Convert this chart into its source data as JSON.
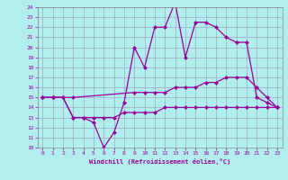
{
  "xlabel": "Windchill (Refroidissement éolien,°C)",
  "background_color": "#b2eeee",
  "grid_color": "#9999bb",
  "line_color": "#990099",
  "xlim": [
    -0.5,
    23.5
  ],
  "ylim": [
    10,
    24
  ],
  "xticks": [
    0,
    1,
    2,
    3,
    4,
    5,
    6,
    7,
    8,
    9,
    10,
    11,
    12,
    13,
    14,
    15,
    16,
    17,
    18,
    19,
    20,
    21,
    22,
    23
  ],
  "yticks": [
    10,
    11,
    12,
    13,
    14,
    15,
    16,
    17,
    18,
    19,
    20,
    21,
    22,
    23,
    24
  ],
  "line1_x": [
    0,
    1,
    2,
    3,
    4,
    5,
    6,
    7,
    8,
    9,
    10,
    11,
    12,
    13,
    14,
    15,
    16,
    17,
    18,
    19,
    20,
    21,
    22,
    23
  ],
  "line1_y": [
    15,
    15,
    15,
    13,
    13,
    12.5,
    10,
    11.5,
    14.5,
    20,
    18,
    22,
    22,
    24.5,
    19,
    22.5,
    22.5,
    22,
    21,
    20.5,
    20.5,
    15,
    14.5,
    14
  ],
  "line2_x": [
    0,
    1,
    3,
    9,
    10,
    11,
    12,
    13,
    14,
    15,
    16,
    17,
    18,
    19,
    20,
    21,
    22,
    23
  ],
  "line2_y": [
    15,
    15,
    15,
    15.5,
    15.5,
    15.5,
    15.5,
    16,
    16,
    16,
    16.5,
    16.5,
    17,
    17,
    17,
    16,
    15,
    14
  ],
  "line3_x": [
    0,
    1,
    2,
    3,
    4,
    5,
    6,
    7,
    8,
    9,
    10,
    11,
    12,
    13,
    14,
    15,
    16,
    17,
    18,
    19,
    20,
    21,
    22,
    23
  ],
  "line3_y": [
    15,
    15,
    15,
    13,
    13,
    13,
    13,
    13,
    13.5,
    13.5,
    13.5,
    13.5,
    14,
    14,
    14,
    14,
    14,
    14,
    14,
    14,
    14,
    14,
    14,
    14
  ]
}
